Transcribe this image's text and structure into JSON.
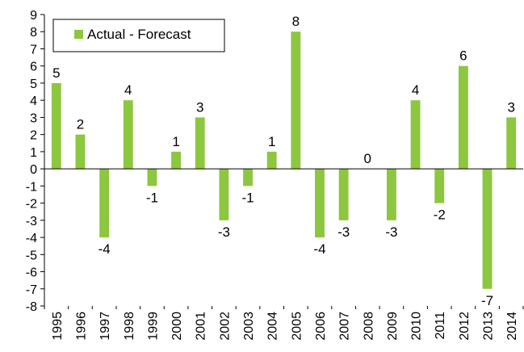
{
  "chart_data": {
    "type": "bar",
    "categories": [
      "1995",
      "1996",
      "1997",
      "1998",
      "1999",
      "2000",
      "2001",
      "2002",
      "2003",
      "2004",
      "2005",
      "2006",
      "2007",
      "2008",
      "2009",
      "2010",
      "2011",
      "2012",
      "2013",
      "2014"
    ],
    "series": [
      {
        "name": "Actual - Forecast",
        "values": [
          5,
          2,
          -4,
          4,
          -1,
          1,
          3,
          -3,
          -1,
          1,
          8,
          -4,
          -3,
          0,
          -3,
          4,
          -2,
          6,
          -7,
          3
        ],
        "color": "#8DC63F"
      }
    ],
    "title": "",
    "xlabel": "",
    "ylabel": "",
    "ylim": [
      -8,
      9
    ],
    "yticks": [
      -8,
      -7,
      -6,
      -5,
      -4,
      -3,
      -2,
      -1,
      0,
      1,
      2,
      3,
      4,
      5,
      6,
      7,
      8,
      9
    ],
    "grid": false,
    "legend_position": "top-left",
    "data_labels": true
  }
}
